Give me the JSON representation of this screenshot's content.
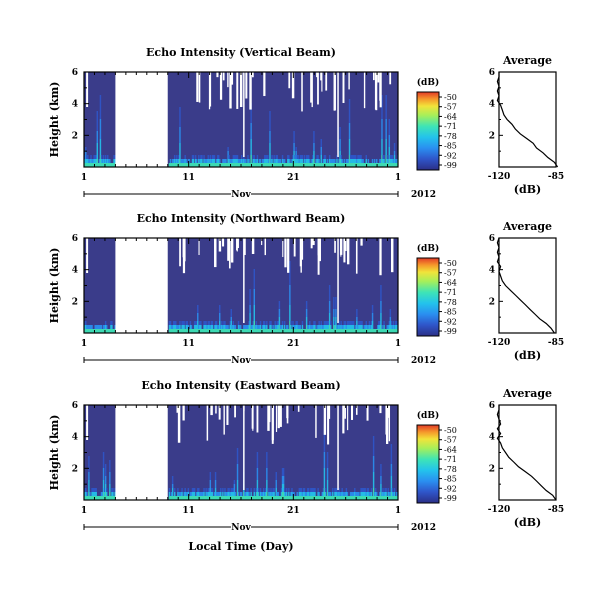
{
  "colors": {
    "background_echo": "#3a3c8a",
    "colormap": [
      "#2b2f86",
      "#2f55c9",
      "#2a8ff0",
      "#23c3ec",
      "#3ee4b6",
      "#a6ef5a",
      "#f2e33a",
      "#f5982b",
      "#e23a27"
    ]
  },
  "chart_data": [
    {
      "type": "heatmap",
      "id": "vertical",
      "title": "Echo Intensity (Vertical Beam)",
      "ylabel": "Height (km)",
      "y_ticks": [
        "6",
        "4",
        "2"
      ],
      "ylim": [
        0,
        6
      ],
      "x_ticks": [
        "1",
        "11",
        "21",
        "1"
      ],
      "month_label": "Nov",
      "year_label": "2012",
      "data_gap_days": [
        3,
        8
      ],
      "colorbar": {
        "unit": "(dB)",
        "ticks": [
          "-50",
          "-57",
          "-64",
          "-71",
          "-78",
          "-85",
          "-92",
          "-99"
        ]
      },
      "average": {
        "title": "Average",
        "xlabel": "(dB)",
        "x_ticks": [
          "-120",
          "-85"
        ],
        "y_ticks": [
          "6",
          "4",
          "2"
        ],
        "xlim": [
          -120,
          -85
        ],
        "profile": [
          [
            -84,
            0.0
          ],
          [
            -86,
            0.3
          ],
          [
            -90,
            0.6
          ],
          [
            -93,
            0.9
          ],
          [
            -97,
            1.2
          ],
          [
            -99,
            1.5
          ],
          [
            -103,
            1.8
          ],
          [
            -107,
            2.1
          ],
          [
            -110,
            2.4
          ],
          [
            -112,
            2.7
          ],
          [
            -115,
            3.0
          ],
          [
            -117,
            3.3
          ],
          [
            -118,
            3.6
          ],
          [
            -119,
            3.9
          ],
          [
            -121,
            4.2
          ],
          [
            -120,
            4.5
          ],
          [
            -121,
            4.8
          ],
          [
            -120,
            5.1
          ],
          [
            -121,
            5.4
          ],
          [
            -120,
            5.7
          ],
          [
            -120,
            6.0
          ]
        ]
      }
    },
    {
      "type": "heatmap",
      "id": "northward",
      "title": "Echo Intensity (Northward Beam)",
      "ylabel": "Height (km)",
      "y_ticks": [
        "6",
        "4",
        "2"
      ],
      "ylim": [
        0,
        6
      ],
      "x_ticks": [
        "1",
        "11",
        "21",
        "1"
      ],
      "month_label": "Nov",
      "year_label": "2012",
      "data_gap_days": [
        3,
        8
      ],
      "colorbar": {
        "unit": "(dB)",
        "ticks": [
          "-50",
          "-57",
          "-64",
          "-71",
          "-78",
          "-85",
          "-92",
          "-99"
        ]
      },
      "average": {
        "title": "Average",
        "xlabel": "(dB)",
        "x_ticks": [
          "-120",
          "-85"
        ],
        "y_ticks": [
          "6",
          "4",
          "2"
        ],
        "xlim": [
          -120,
          -85
        ],
        "profile": [
          [
            -86,
            0.0
          ],
          [
            -88,
            0.3
          ],
          [
            -91,
            0.6
          ],
          [
            -95,
            0.9
          ],
          [
            -98,
            1.2
          ],
          [
            -101,
            1.5
          ],
          [
            -104,
            1.8
          ],
          [
            -107,
            2.1
          ],
          [
            -110,
            2.4
          ],
          [
            -113,
            2.7
          ],
          [
            -116,
            3.0
          ],
          [
            -118,
            3.3
          ],
          [
            -119,
            3.6
          ],
          [
            -120,
            3.9
          ],
          [
            -119,
            4.2
          ],
          [
            -121,
            4.5
          ],
          [
            -120,
            4.8
          ],
          [
            -121,
            5.1
          ],
          [
            -120,
            5.4
          ],
          [
            -121,
            5.7
          ],
          [
            -120,
            6.0
          ]
        ]
      }
    },
    {
      "type": "heatmap",
      "id": "eastward",
      "title": "Echo Intensity (Eastward Beam)",
      "ylabel": "Height (km)",
      "xlabel": "Local Time (Day)",
      "y_ticks": [
        "6",
        "4",
        "2"
      ],
      "ylim": [
        0,
        6
      ],
      "x_ticks": [
        "1",
        "11",
        "21",
        "1"
      ],
      "month_label": "Nov",
      "year_label": "2012",
      "data_gap_days": [
        3,
        8
      ],
      "colorbar": {
        "unit": "(dB)",
        "ticks": [
          "-50",
          "-57",
          "-64",
          "-71",
          "-78",
          "-85",
          "-92",
          "-99"
        ]
      },
      "average": {
        "title": "Average",
        "xlabel": "(dB)",
        "x_ticks": [
          "-120",
          "-85"
        ],
        "y_ticks": [
          "6",
          "4",
          "2"
        ],
        "xlim": [
          -120,
          -85
        ],
        "profile": [
          [
            -85,
            0.0
          ],
          [
            -87,
            0.3
          ],
          [
            -91,
            0.6
          ],
          [
            -94,
            0.9
          ],
          [
            -97,
            1.2
          ],
          [
            -100,
            1.5
          ],
          [
            -104,
            1.8
          ],
          [
            -108,
            2.1
          ],
          [
            -111,
            2.4
          ],
          [
            -114,
            2.7
          ],
          [
            -116,
            3.0
          ],
          [
            -118,
            3.3
          ],
          [
            -119,
            3.6
          ],
          [
            -121,
            3.9
          ],
          [
            -119,
            4.2
          ],
          [
            -121,
            4.5
          ],
          [
            -119,
            4.8
          ],
          [
            -120,
            5.1
          ],
          [
            -121,
            5.4
          ],
          [
            -120,
            5.7
          ],
          [
            -120,
            6.0
          ]
        ]
      }
    }
  ]
}
